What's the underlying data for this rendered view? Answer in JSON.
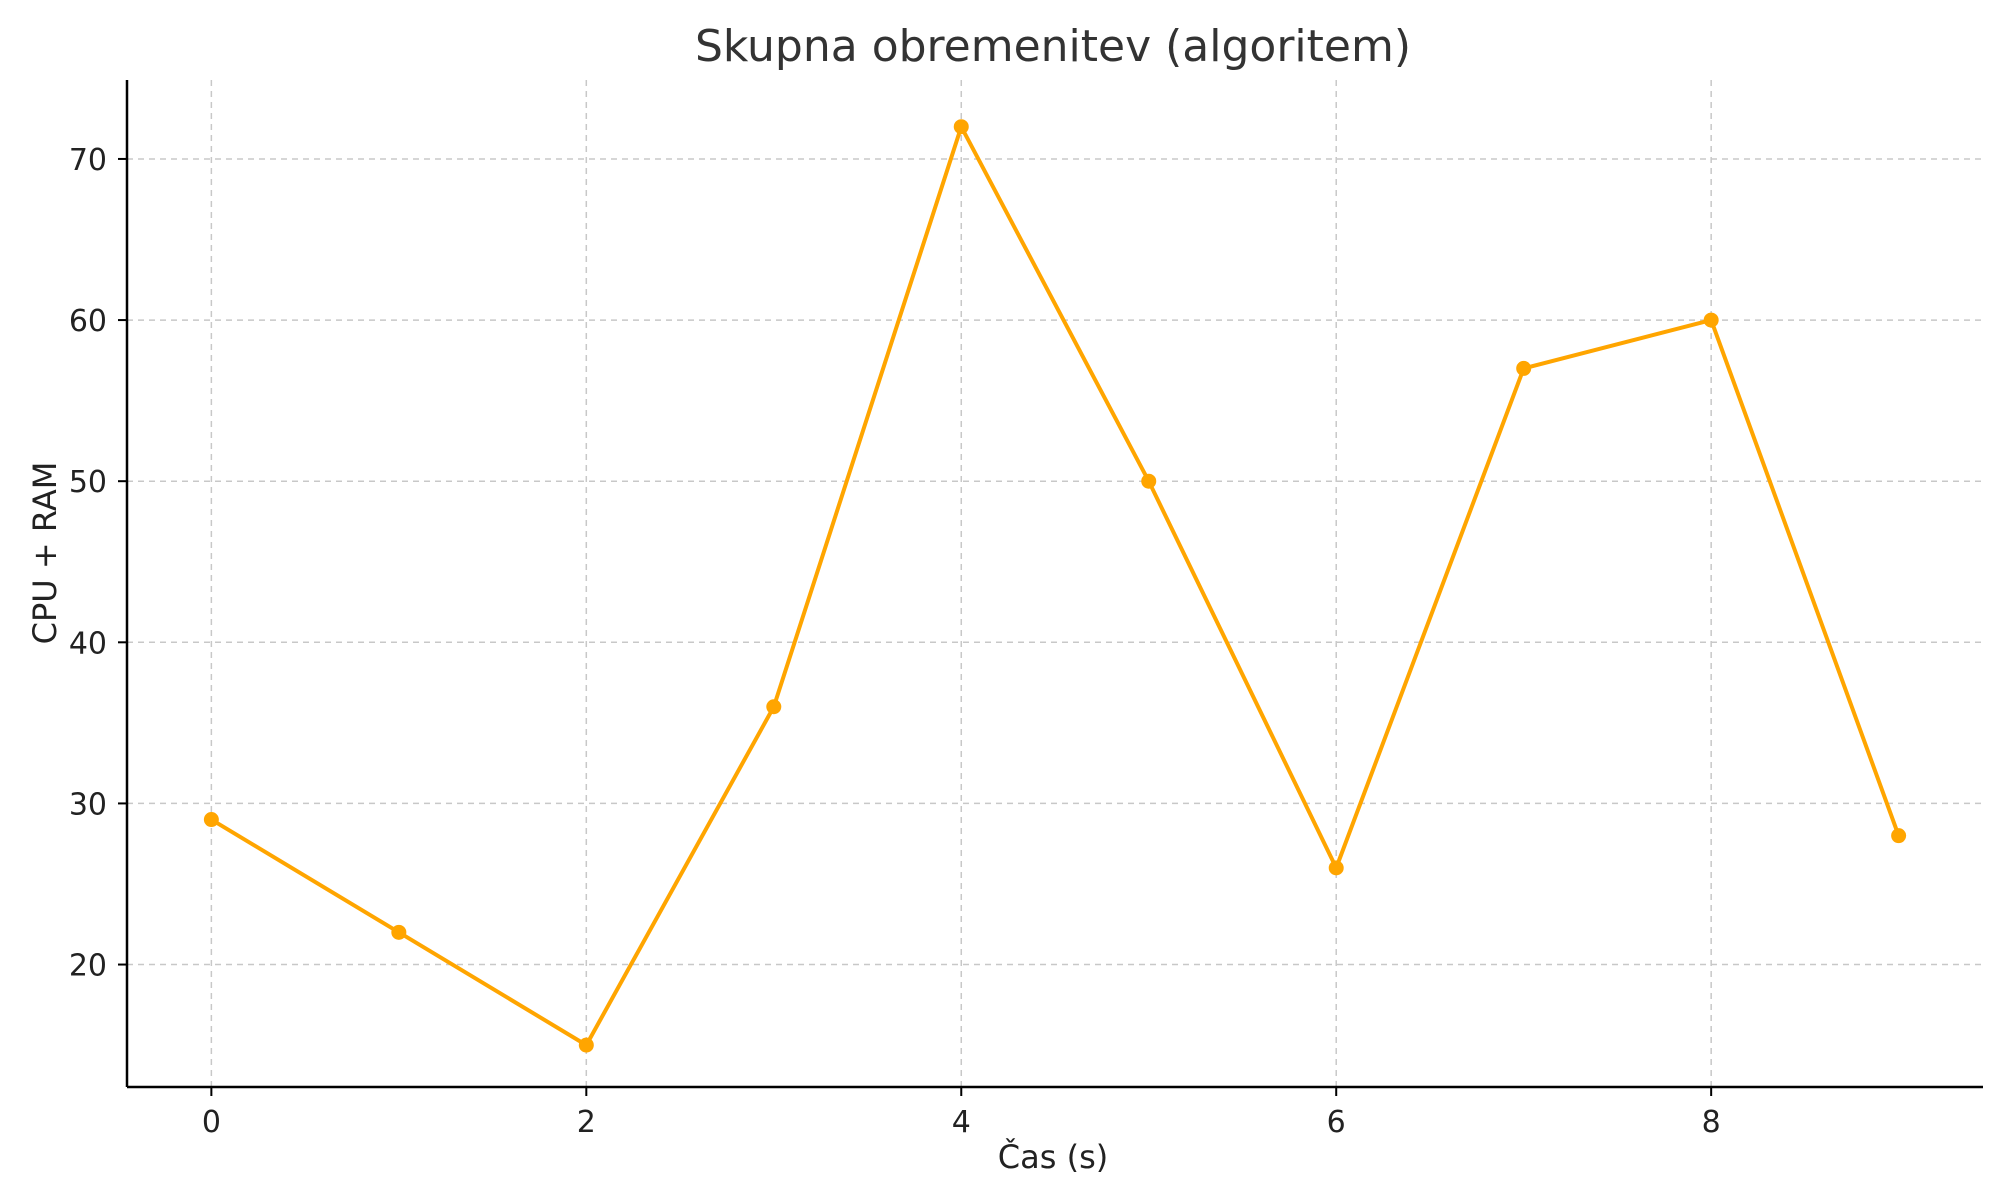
{
  "chart_data": {
    "type": "line",
    "title": "Skupna obremenitev (algoritem)",
    "xlabel": "Čas (s)",
    "ylabel": "CPU + RAM",
    "xlim": [
      -0.45,
      9.45
    ],
    "ylim": [
      12.4,
      74.9
    ],
    "xticks": [
      0,
      2,
      4,
      6,
      8
    ],
    "yticks": [
      20,
      30,
      40,
      50,
      60,
      70
    ],
    "grid": true,
    "color": "#FFA500",
    "series": [
      {
        "x": [
          0,
          1,
          2,
          3,
          4,
          5,
          6,
          7,
          8,
          9
        ],
        "values": [
          29,
          22,
          15,
          36,
          72,
          50,
          26,
          57,
          60,
          28
        ]
      }
    ]
  }
}
